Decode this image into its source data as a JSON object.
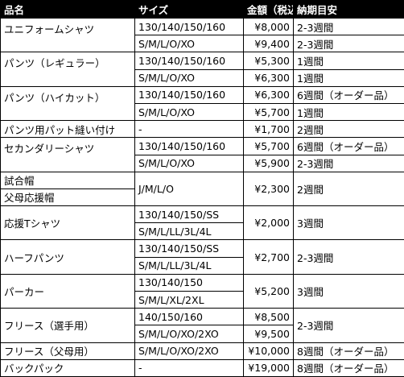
{
  "table": {
    "header": [
      "品名",
      "サイズ",
      "金額（税込）",
      "納期目安"
    ],
    "rows": [
      [
        "ユニフォームシャツ",
        "130/140/150/160",
        "¥8,000",
        "2-3週間"
      ],
      [
        "S/M/L/O/XO",
        "¥9,400",
        "2-3週間"
      ],
      [
        "パンツ（レギュラー）",
        "130/140/150/160",
        "¥5,300",
        "1週間"
      ],
      [
        "S/M/L/O/XO",
        "¥6,300",
        "1週間"
      ],
      [
        "パンツ（ハイカット）",
        "130/140/150/160",
        "¥6,300",
        "6週間（オーダー品）"
      ],
      [
        "S/M/L/O/XO",
        "¥5,700",
        "1週間"
      ],
      [
        "パンツ用パット縫い付け",
        "-",
        "¥1,700",
        "2週間"
      ],
      [
        "セカンダリーシャツ",
        "130/140/150/160",
        "¥5,700",
        "6週間（オーダー品）"
      ],
      [
        "S/M/L/O/XO",
        "¥5,900",
        "2-3週間"
      ],
      [
        "試合帽",
        "J/M/L/O",
        "¥2,300",
        "2週間"
      ],
      [
        "父母応援帽"
      ],
      [
        "応援Tシャツ",
        "130/140/150/SS",
        "¥2,000",
        "3週間"
      ],
      [
        "S/M/L/LL/3L/4L"
      ],
      [
        "ハーフパンツ",
        "130/140/150/SS",
        "¥2,700",
        "2-3週間"
      ],
      [
        "S/M/L/LL/3L/4L"
      ],
      [
        "パーカー",
        "130/140/150",
        "¥5,200",
        "3週間"
      ],
      [
        "S/M/L/XL/2XL"
      ],
      [
        "フリース（選手用）",
        "140/150/160",
        "¥8,500",
        "2-3週間"
      ],
      [
        "S/M/L/O/XO/2XO",
        "¥9,500"
      ],
      [
        "フリース（父母用）",
        "S/M/L/O/XO/2XO",
        "¥10,000",
        "8週間（オーダー品）"
      ],
      [
        "バックパック",
        "-",
        "¥19,000",
        "8週間（オーダー品）"
      ]
    ]
  }
}
